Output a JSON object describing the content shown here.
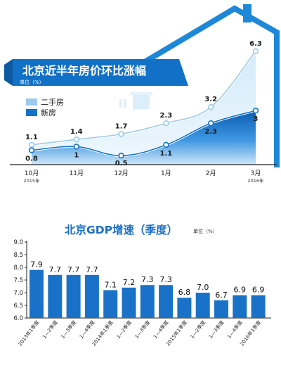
{
  "charts": [
    {
      "type": "area",
      "title": "北京近半年房价环比涨幅",
      "unit": "单位（%）",
      "legend_position": "left",
      "categories": [
        "10月",
        "11月",
        "12月",
        "1月",
        "2月",
        "3月"
      ],
      "year_labels": [
        "2015年",
        "",
        "",
        "",
        "",
        "2016年"
      ],
      "series": [
        {
          "name": "二手房",
          "values": [
            1.1,
            1.4,
            1.7,
            2.3,
            3.2,
            6.3
          ],
          "value_labels": [
            "1.1",
            "1.4",
            "1.7",
            "2.3",
            "3.2",
            "6.3"
          ],
          "color": "#9cc9ee"
        },
        {
          "name": "新房",
          "values": [
            0.8,
            1,
            0.5,
            1.1,
            2.3,
            3
          ],
          "value_labels": [
            "0.8",
            "1",
            "0.5",
            "1.1",
            "2.3",
            "3"
          ],
          "color": "#1273c9"
        }
      ],
      "ylim": [
        0,
        6.8
      ],
      "grid": false,
      "colors": {
        "header": "#1271c6",
        "frame": "#1e88d8",
        "deep": "#0c5fb3",
        "light": "#b9dcf5"
      }
    },
    {
      "type": "bar",
      "title": "北京GDP增速（季度）",
      "unit": "单位（%）",
      "categories": [
        "2013年1季度",
        "1—2季度",
        "1—3季度",
        "1—4季度",
        "2014年1季度",
        "1—2季度",
        "1—3季度",
        "1—4季度",
        "2015年1季度",
        "1—2季度",
        "1—3季度",
        "1—4季度",
        "2016年1季度"
      ],
      "values": [
        7.9,
        7.7,
        7.7,
        7.7,
        7.1,
        7.2,
        7.3,
        7.3,
        6.8,
        7.0,
        6.7,
        6.9,
        6.9
      ],
      "value_labels": [
        "7.9",
        "7.7",
        "7.7",
        "7.7",
        "7.1",
        "7.2",
        "7.3",
        "7.3",
        "6.8",
        "7.0",
        "6.7",
        "6.9",
        "6.9"
      ],
      "yticks": [
        "6.0",
        "6.5",
        "7.0",
        "7.5",
        "8.0",
        "8.5",
        "9.0"
      ],
      "ylim": [
        6.0,
        9.0
      ],
      "grid": false,
      "colors": {
        "bar": "#1a72c8",
        "title": "#1a6fc4"
      }
    }
  ]
}
